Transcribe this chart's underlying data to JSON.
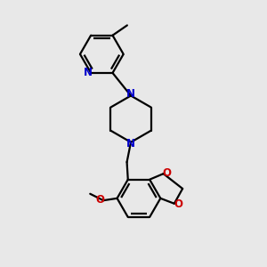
{
  "bg_color": "#e8e8e8",
  "bond_color": "#000000",
  "N_color": "#0000cc",
  "O_color": "#cc0000",
  "line_width": 1.6,
  "fig_size": [
    3.0,
    3.0
  ],
  "dpi": 100,
  "xlim": [
    0,
    10
  ],
  "ylim": [
    0,
    10
  ]
}
